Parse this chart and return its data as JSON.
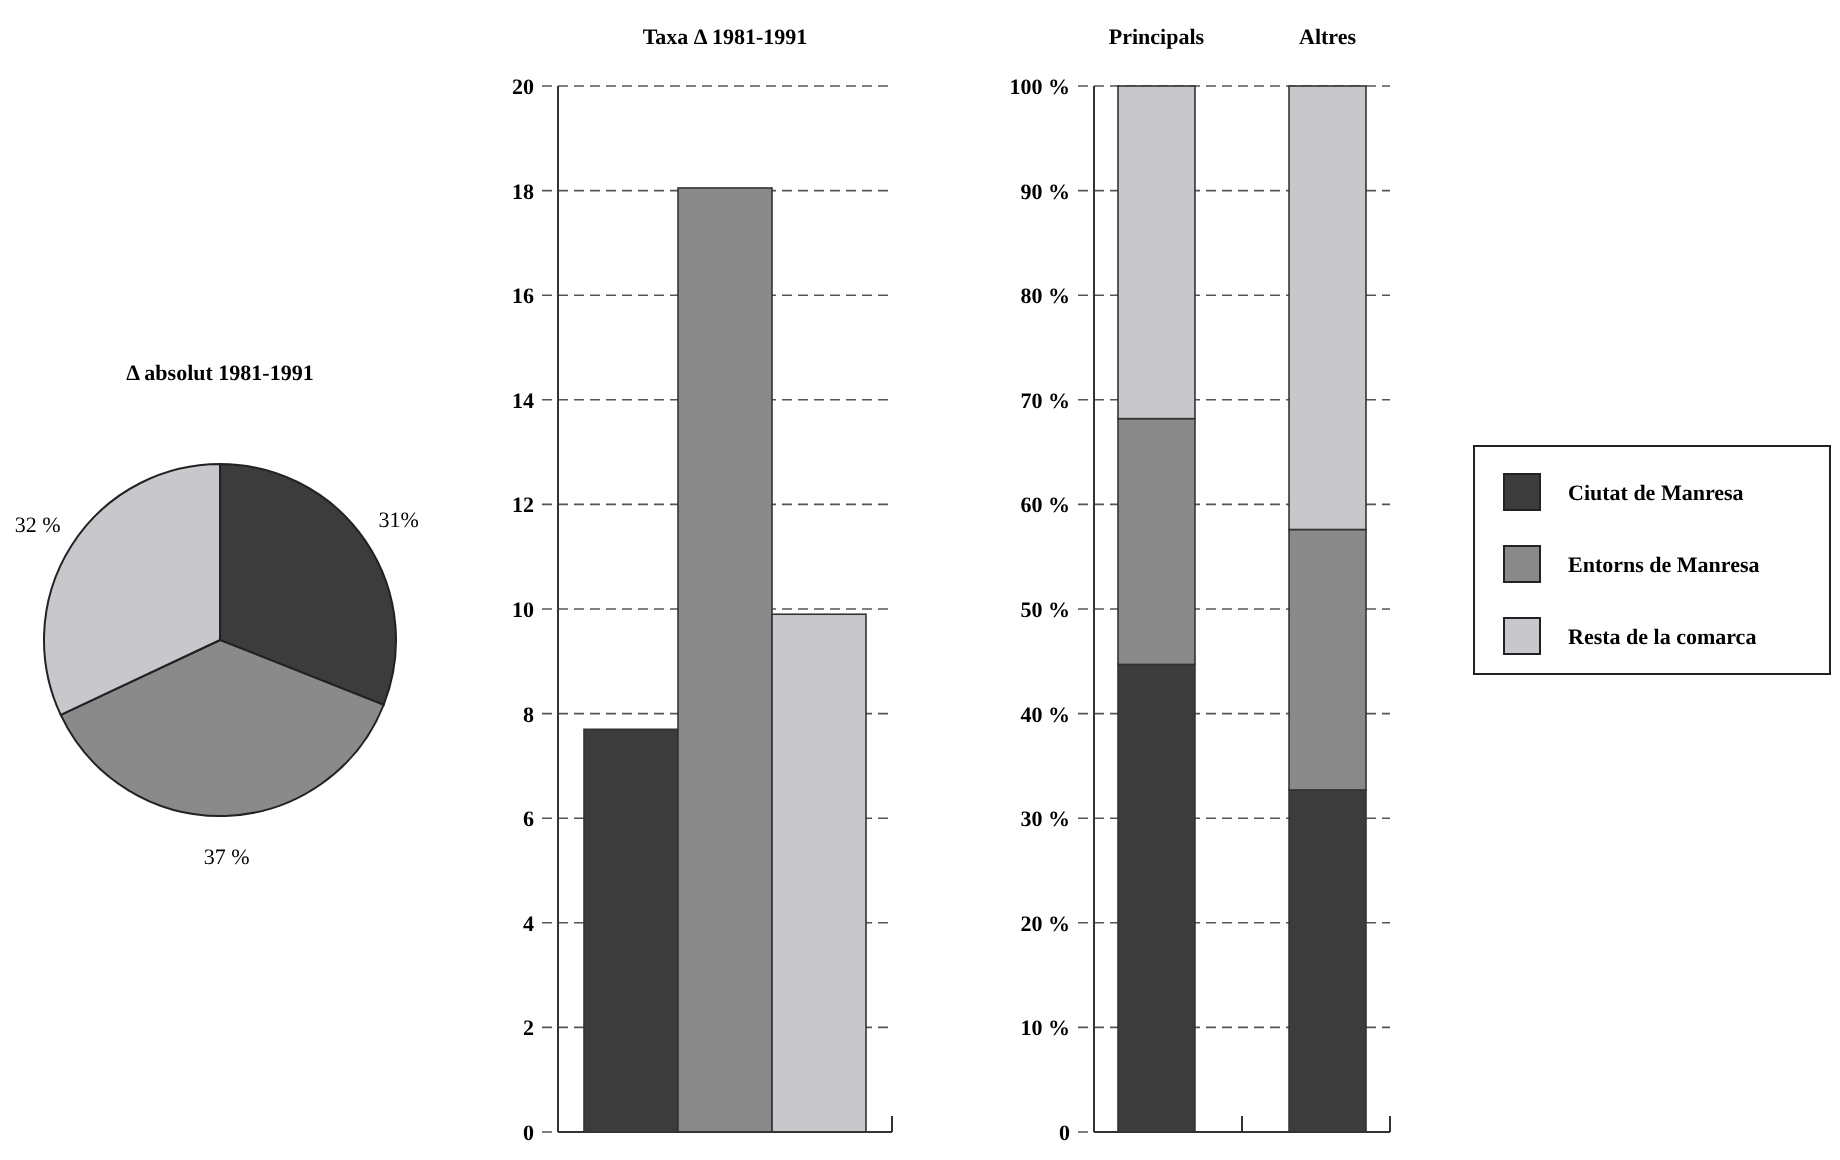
{
  "chart_data": [
    {
      "type": "pie",
      "title": "Δ absolut 1981-1991",
      "categories": [
        null,
        null,
        null
      ],
      "values": [
        31,
        37,
        32
      ],
      "colors": [
        "#3c3c3c",
        "#8a8a8a",
        "#c8c8cc"
      ],
      "value_labels": [
        "31%",
        "37 %",
        "32 %"
      ]
    },
    {
      "type": "bar",
      "title": "Taxa Δ 1981-1991",
      "categories": [
        null,
        null,
        null
      ],
      "values": [
        7.7,
        18.05,
        9.9
      ],
      "colors": [
        "#3c3c3c",
        "#8a8a8a",
        "#c8c8cc"
      ],
      "ylim": [
        0,
        20
      ],
      "yticks": [
        0,
        2,
        4,
        6,
        8,
        10,
        12,
        14,
        16,
        18,
        20
      ],
      "grid": "y"
    },
    {
      "type": "bar",
      "stacked": true,
      "categories": [
        "Principals",
        "Altres"
      ],
      "series": [
        {
          "name": "Ciutat de Manresa",
          "color": "#3c3c3c",
          "values": [
            44.7,
            32.7
          ]
        },
        {
          "name": "Entorns de Manresa",
          "color": "#8a8a8a",
          "values": [
            23.5,
            24.9
          ]
        },
        {
          "name": "Resta de la comarca",
          "color": "#c8c8cc",
          "values": [
            31.8,
            42.4
          ]
        }
      ],
      "ylim": [
        0,
        100
      ],
      "yticks": [
        0,
        {
          "value": 10,
          "label": "10 %"
        },
        {
          "value": 20,
          "label": "20 %"
        },
        {
          "value": 30,
          "label": "30 %"
        },
        {
          "value": 40,
          "label": "40 %"
        },
        {
          "value": 50,
          "label": "50 %"
        },
        {
          "value": 60,
          "label": "60 %"
        },
        {
          "value": 70,
          "label": "70 %"
        },
        {
          "value": 80,
          "label": "80 %"
        },
        {
          "value": 90,
          "label": "90 %"
        },
        {
          "value": 100,
          "label": "100 %"
        }
      ],
      "grid": "y",
      "legend": "right"
    }
  ]
}
